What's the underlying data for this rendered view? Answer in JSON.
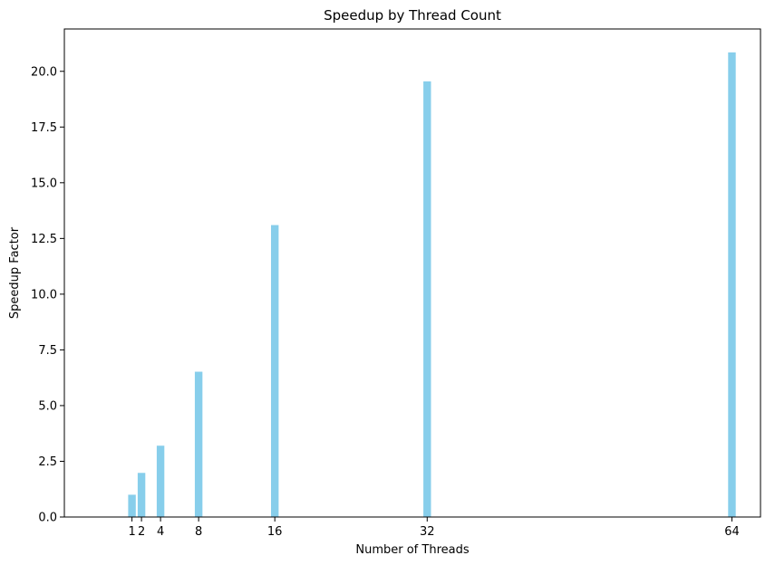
{
  "chart_data": {
    "type": "bar",
    "title": "Speedup by Thread Count",
    "xlabel": "Number of Threads",
    "ylabel": "Speedup Factor",
    "x": [
      1,
      2,
      4,
      8,
      16,
      32,
      64
    ],
    "x_tick_labels": [
      "1",
      "2",
      "4",
      "8",
      "16",
      "32",
      "64"
    ],
    "values": [
      1.0,
      1.98,
      3.2,
      6.52,
      13.1,
      19.55,
      20.85
    ],
    "xlim": [
      -6.1,
      67.0
    ],
    "ylim": [
      0,
      21.9
    ],
    "y_ticks": [
      0,
      2.5,
      5,
      7.5,
      10,
      12.5,
      15,
      17.5,
      20
    ],
    "y_tick_labels": [
      "0.0",
      "2.5",
      "5.0",
      "7.5",
      "10.0",
      "12.5",
      "15.0",
      "17.5",
      "20.0"
    ],
    "bar_color": "#87ceeb",
    "grid": false,
    "legend": "none"
  }
}
